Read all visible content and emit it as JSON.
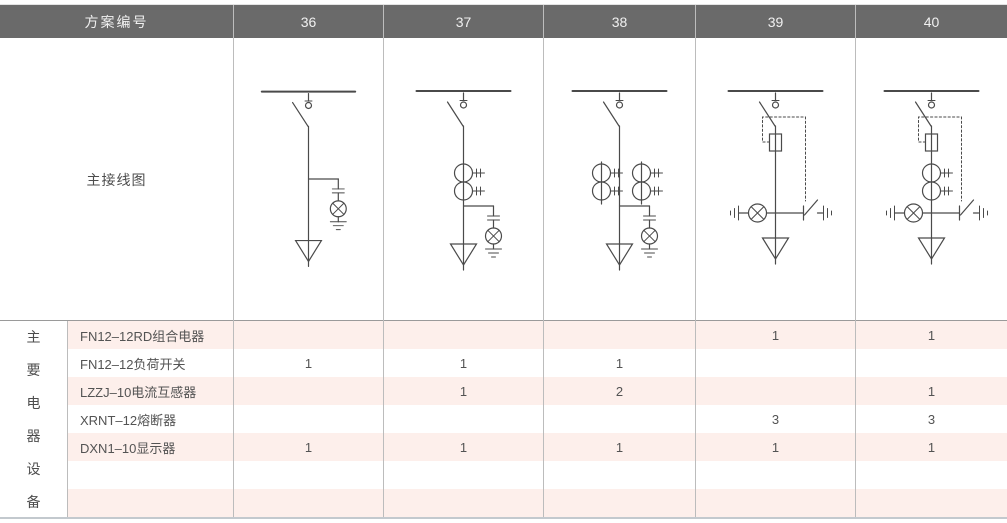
{
  "table": {
    "header": {
      "label": "方案编号",
      "schemes": [
        "36",
        "37",
        "38",
        "39",
        "40"
      ]
    },
    "diagram_row_label": "主接线图",
    "equipment_group_label": "主要电器设备",
    "equipment_rows": [
      {
        "name": "FN12–12RD组合电器",
        "values": [
          "",
          "",
          "",
          "1",
          "1"
        ]
      },
      {
        "name": "FN12–12负荷开关",
        "values": [
          "1",
          "1",
          "1",
          "",
          ""
        ]
      },
      {
        "name": "LZZJ–10电流互感器",
        "values": [
          "",
          "1",
          "2",
          "",
          "1"
        ]
      },
      {
        "name": "XRNT–12熔断器",
        "values": [
          "",
          "",
          "",
          "3",
          "3"
        ]
      },
      {
        "name": "DXN1–10显示器",
        "values": [
          "1",
          "1",
          "1",
          "1",
          "1"
        ]
      },
      {
        "name": "",
        "values": [
          "",
          "",
          "",
          "",
          ""
        ]
      },
      {
        "name": "",
        "values": [
          "",
          "",
          "",
          "",
          ""
        ]
      }
    ],
    "diagrams": [
      {
        "scheme": "36",
        "symbols": {
          "busbar": true,
          "load_switch": true,
          "fuse_with_linkage": false,
          "ct_pairs": 0,
          "indicator": "lamp-ground",
          "outgoing_feeder": true
        }
      },
      {
        "scheme": "37",
        "symbols": {
          "busbar": true,
          "load_switch": true,
          "fuse_with_linkage": false,
          "ct_pairs": 1,
          "indicator": "lamp-ground",
          "outgoing_feeder": true
        }
      },
      {
        "scheme": "38",
        "symbols": {
          "busbar": true,
          "load_switch": true,
          "fuse_with_linkage": false,
          "ct_pairs": 2,
          "indicator": "lamp-ground",
          "outgoing_feeder": true
        }
      },
      {
        "scheme": "39",
        "symbols": {
          "busbar": true,
          "load_switch": true,
          "fuse_with_linkage": true,
          "ct_pairs": 0,
          "indicator": "lamp-contacts",
          "outgoing_feeder": true
        }
      },
      {
        "scheme": "40",
        "symbols": {
          "busbar": true,
          "load_switch": true,
          "fuse_with_linkage": true,
          "ct_pairs": 1,
          "indicator": "lamp-contacts",
          "outgoing_feeder": true
        }
      }
    ]
  },
  "colors": {
    "header_bg": "#6a6a6a",
    "header_text": "#f0f0f0",
    "row_alt_bg": "#fdefeb",
    "grid_line": "#bcbcbc",
    "diagram_stroke": "#4a4a4a"
  }
}
